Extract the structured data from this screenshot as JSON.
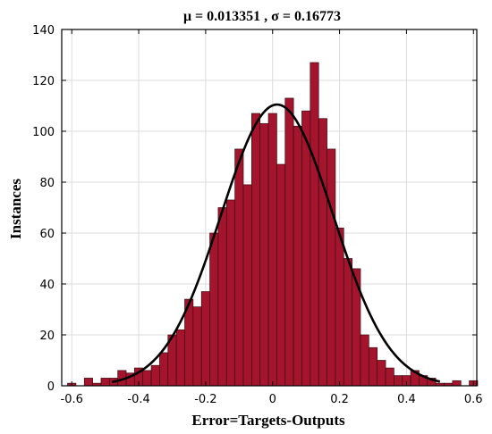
{
  "chart_data": {
    "type": "bar",
    "title": "μ = 0.013351 , σ = 0.16773",
    "xlabel": "Error=Targets-Outputs",
    "ylabel": "Instances",
    "xlim": [
      -0.63,
      0.61
    ],
    "ylim": [
      0,
      140
    ],
    "xticks": [
      "-0.6",
      "-0.4",
      "-0.2",
      "0",
      "0.2",
      "0.4",
      "0.6"
    ],
    "xtick_values": [
      -0.6,
      -0.4,
      -0.2,
      0,
      0.2,
      0.4,
      0.6
    ],
    "yticks": [
      "0",
      "20",
      "40",
      "60",
      "80",
      "100",
      "120",
      "140"
    ],
    "ytick_values": [
      0,
      20,
      40,
      60,
      80,
      100,
      120,
      140
    ],
    "grid": true,
    "bin_width": 0.025,
    "bin_centers": [
      -0.6,
      -0.575,
      -0.55,
      -0.525,
      -0.5,
      -0.475,
      -0.45,
      -0.425,
      -0.4,
      -0.375,
      -0.35,
      -0.325,
      -0.3,
      -0.275,
      -0.25,
      -0.225,
      -0.2,
      -0.175,
      -0.15,
      -0.125,
      -0.1,
      -0.075,
      -0.05,
      -0.025,
      0,
      0.025,
      0.05,
      0.075,
      0.1,
      0.125,
      0.15,
      0.175,
      0.2,
      0.225,
      0.25,
      0.275,
      0.3,
      0.325,
      0.35,
      0.375,
      0.4,
      0.425,
      0.45,
      0.475,
      0.5,
      0.525,
      0.55,
      0.575,
      0.6
    ],
    "values": [
      1,
      0,
      3,
      1,
      3,
      3,
      6,
      5,
      7,
      6,
      8,
      13,
      20,
      22,
      34,
      31,
      37,
      60,
      70,
      73,
      93,
      79,
      107,
      103,
      107,
      87,
      113,
      102,
      108,
      127,
      105,
      93,
      62,
      50,
      46,
      20,
      15,
      10,
      7,
      4,
      4,
      6,
      4,
      3,
      1,
      1,
      2,
      0,
      2
    ],
    "fit_curve": {
      "type": "normal",
      "mu": 0.013351,
      "sigma": 0.16773,
      "peak": 110.5
    },
    "colors": {
      "bar_fill": "#a4152d",
      "bar_edge": "#3a0a10",
      "curve": "#000000",
      "grid": "#dcdcdc"
    }
  }
}
